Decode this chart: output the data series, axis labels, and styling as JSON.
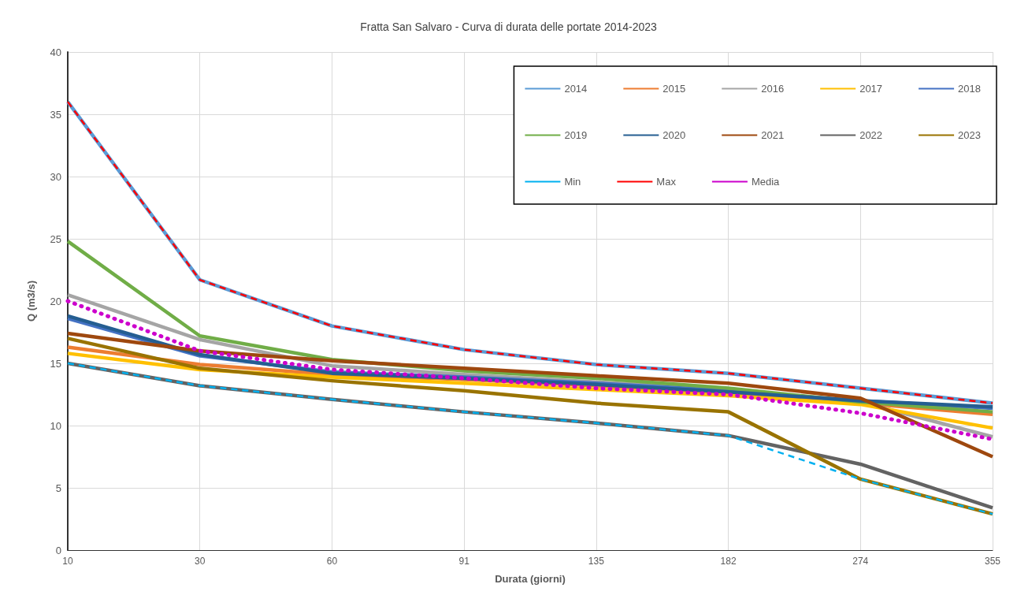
{
  "chart_data": {
    "type": "line",
    "title": "Fratta San Salvaro - Curva di durata delle portate 2014-2023",
    "xlabel": "Durata (giorni)",
    "ylabel": "Q (m3/s)",
    "categories": [
      "10",
      "30",
      "60",
      "91",
      "135",
      "182",
      "274",
      "355"
    ],
    "ylim": [
      0,
      40
    ],
    "yticks": [
      0,
      5,
      10,
      15,
      20,
      25,
      30,
      35,
      40
    ],
    "grid": true,
    "legend": "top right",
    "marker": "none",
    "series": [
      {
        "name": "2014",
        "color": "#5b9bd5",
        "values": [
          36.0,
          21.7,
          18.0,
          16.1,
          14.9,
          14.2,
          13.0,
          11.8
        ]
      },
      {
        "name": "2015",
        "color": "#ed7d31",
        "values": [
          16.3,
          14.9,
          14.1,
          13.7,
          13.2,
          12.6,
          11.8,
          10.9
        ]
      },
      {
        "name": "2016",
        "color": "#a5a5a5",
        "values": [
          20.5,
          16.9,
          14.8,
          14.1,
          13.5,
          12.9,
          11.9,
          9.1
        ]
      },
      {
        "name": "2017",
        "color": "#ffc000",
        "values": [
          15.8,
          14.5,
          13.9,
          13.4,
          12.9,
          12.4,
          11.7,
          9.8
        ]
      },
      {
        "name": "2018",
        "color": "#4472c4",
        "values": [
          18.6,
          15.6,
          14.3,
          13.9,
          13.4,
          12.8,
          12.0,
          11.4
        ]
      },
      {
        "name": "2019",
        "color": "#70ad47",
        "values": [
          24.8,
          17.2,
          15.3,
          14.4,
          13.8,
          13.0,
          11.9,
          11.1
        ]
      },
      {
        "name": "2020",
        "color": "#255e91",
        "values": [
          18.8,
          15.7,
          14.2,
          13.8,
          13.3,
          12.7,
          12.0,
          11.5
        ]
      },
      {
        "name": "2021",
        "color": "#9e480e",
        "values": [
          17.4,
          16.0,
          15.2,
          14.6,
          14.0,
          13.4,
          12.2,
          7.5
        ]
      },
      {
        "name": "2022",
        "color": "#636363",
        "values": [
          15.0,
          13.2,
          12.1,
          11.1,
          10.2,
          9.2,
          6.9,
          3.4
        ]
      },
      {
        "name": "2023",
        "color": "#997300",
        "values": [
          17.0,
          14.6,
          13.6,
          12.8,
          11.8,
          11.1,
          5.7,
          2.9
        ]
      },
      {
        "name": "Min",
        "color": "#00b0f0",
        "line_style": "dashed",
        "values": [
          15.0,
          13.2,
          12.1,
          11.1,
          10.2,
          9.2,
          5.7,
          2.9
        ]
      },
      {
        "name": "Max",
        "color": "#ff0000",
        "line_style": "dashed",
        "values": [
          36.0,
          21.7,
          18.0,
          16.1,
          14.9,
          14.2,
          13.0,
          11.8
        ]
      },
      {
        "name": "Media",
        "color": "#cc00cc",
        "line_style": "dotted",
        "values": [
          20.0,
          16.0,
          14.5,
          13.8,
          13.0,
          12.5,
          11.0,
          8.9
        ]
      }
    ]
  }
}
